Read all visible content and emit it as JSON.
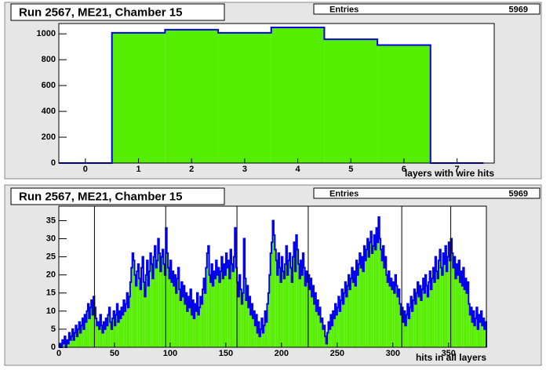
{
  "chart_data": [
    {
      "type": "histogram",
      "title": "Run 2567, ME21, Chamber 15",
      "stats": {
        "label": "Entries",
        "value": 5969
      },
      "xlabel": "layers with wire hits",
      "bins": [
        -0.5,
        0.5,
        1.5,
        2.5,
        3.5,
        4.5,
        5.5,
        6.5,
        7.5
      ],
      "values": [
        0,
        1008,
        1032,
        1008,
        1050,
        958,
        913,
        0
      ],
      "xlim": [
        -0.5,
        7.7
      ],
      "xticks": [
        0,
        1,
        2,
        3,
        4,
        5,
        6,
        7
      ],
      "ylim": [
        0,
        1080
      ],
      "yticks": [
        0,
        200,
        400,
        600,
        800,
        1000
      ],
      "color": "#55ee00",
      "line_color": "#0000ee"
    },
    {
      "type": "histogram",
      "title": "Run 2567, ME21, Chamber 15",
      "stats": {
        "label": "Entries",
        "value": 5969
      },
      "xlabel": "hits in all layers",
      "bins": [
        0,
        1,
        2,
        3,
        4,
        5,
        6,
        7,
        8,
        9,
        10,
        11,
        12,
        13,
        14,
        15,
        16,
        17,
        18,
        19,
        20,
        21,
        22,
        23,
        24,
        25,
        26,
        27,
        28,
        29,
        30,
        31,
        32,
        33,
        34,
        35,
        36,
        37,
        38,
        39,
        40,
        41,
        42,
        43,
        44,
        45,
        46,
        47,
        48,
        49,
        50,
        51,
        52,
        53,
        54,
        55,
        56,
        57,
        58,
        59,
        60,
        61,
        62,
        63,
        64,
        65,
        66,
        67,
        68,
        69,
        70,
        71,
        72,
        73,
        74,
        75,
        76,
        77,
        78,
        79,
        80,
        81,
        82,
        83,
        84,
        85,
        86,
        87,
        88,
        89,
        90,
        91,
        92,
        93,
        94,
        95,
        96,
        97,
        98,
        99,
        100,
        101,
        102,
        103,
        104,
        105,
        106,
        107,
        108,
        109,
        110,
        111,
        112,
        113,
        114,
        115,
        116,
        117,
        118,
        119,
        120,
        121,
        122,
        123,
        124,
        125,
        126,
        127,
        128,
        129,
        130,
        131,
        132,
        133,
        134,
        135,
        136,
        137,
        138,
        139,
        140,
        141,
        142,
        143,
        144,
        145,
        146,
        147,
        148,
        149,
        150,
        151,
        152,
        153,
        154,
        155,
        156,
        157,
        158,
        159,
        160,
        161,
        162,
        163,
        164,
        165,
        166,
        167,
        168,
        169,
        170,
        171,
        172,
        173,
        174,
        175,
        176,
        177,
        178,
        179,
        180,
        181,
        182,
        183,
        184,
        185,
        186,
        187,
        188,
        189,
        190,
        191,
        192,
        193,
        194,
        195,
        196,
        197,
        198,
        199,
        200,
        201,
        202,
        203,
        204,
        205,
        206,
        207,
        208,
        209,
        210,
        211,
        212,
        213,
        214,
        215,
        216,
        217,
        218,
        219,
        220,
        221,
        222,
        223,
        224,
        225,
        226,
        227,
        228,
        229,
        230,
        231,
        232,
        233,
        234,
        235,
        236,
        237,
        238,
        239,
        240,
        241,
        242,
        243,
        244,
        245,
        246,
        247,
        248,
        249,
        250,
        251,
        252,
        253,
        254,
        255,
        256,
        257,
        258,
        259,
        260,
        261,
        262,
        263,
        264,
        265,
        266,
        267,
        268,
        269,
        270,
        271,
        272,
        273,
        274,
        275,
        276,
        277,
        278,
        279,
        280,
        281,
        282,
        283,
        284,
        285,
        286,
        287,
        288,
        289,
        290,
        291,
        292,
        293,
        294,
        295,
        296,
        297,
        298,
        299,
        300,
        301,
        302,
        303,
        304,
        305,
        306,
        307,
        308,
        309,
        310,
        311,
        312,
        313,
        314,
        315,
        316,
        317,
        318,
        319,
        320,
        321,
        322,
        323,
        324,
        325,
        326,
        327,
        328,
        329,
        330,
        331,
        332,
        333,
        334,
        335,
        336,
        337,
        338,
        339,
        340,
        341,
        342,
        343,
        344,
        345,
        346,
        347,
        348,
        349,
        350,
        351,
        352,
        353,
        354,
        355,
        356,
        357,
        358,
        359,
        360,
        361,
        362,
        363,
        364,
        365,
        366,
        367,
        368,
        369,
        370,
        371,
        372,
        373,
        374,
        375,
        376,
        377,
        378,
        379,
        380,
        381,
        382,
        383,
        384
      ],
      "values": [
        0,
        1,
        0,
        2,
        1,
        3,
        0,
        2,
        1,
        4,
        2,
        3,
        5,
        2,
        4,
        6,
        3,
        5,
        7,
        4,
        6,
        8,
        5,
        9,
        7,
        10,
        12,
        8,
        11,
        13,
        9,
        14,
        11,
        8,
        6,
        7,
        5,
        9,
        6,
        4,
        7,
        5,
        8,
        6,
        9,
        11,
        7,
        5,
        8,
        10,
        6,
        9,
        12,
        7,
        10,
        8,
        11,
        9,
        13,
        10,
        12,
        15,
        11,
        14,
        18,
        22,
        26,
        24,
        20,
        17,
        21,
        23,
        19,
        16,
        22,
        25,
        18,
        14,
        20,
        24,
        17,
        21,
        26,
        23,
        19,
        25,
        28,
        22,
        24,
        30,
        26,
        21,
        25,
        27,
        23,
        20,
        33,
        26,
        22,
        19,
        24,
        18,
        21,
        17,
        20,
        15,
        19,
        22,
        16,
        13,
        18,
        14,
        17,
        12,
        15,
        10,
        14,
        11,
        16,
        9,
        13,
        8,
        12,
        10,
        15,
        9,
        11,
        14,
        12,
        16,
        19,
        15,
        22,
        26,
        28,
        20,
        18,
        23,
        17,
        21,
        19,
        24,
        20,
        22,
        18,
        21,
        25,
        19,
        23,
        20,
        26,
        22,
        24,
        19,
        27,
        23,
        21,
        25,
        33,
        22,
        18,
        14,
        20,
        16,
        12,
        15,
        30,
        19,
        13,
        17,
        11,
        14,
        9,
        12,
        8,
        10,
        6,
        9,
        4,
        7,
        3,
        5,
        8,
        4,
        6,
        10,
        7,
        12,
        15,
        20,
        26,
        29,
        35,
        31,
        27,
        24,
        20,
        26,
        22,
        18,
        25,
        21,
        19,
        23,
        28,
        20,
        24,
        26,
        22,
        18,
        25,
        29,
        21,
        31,
        27,
        23,
        19,
        24,
        20,
        26,
        22,
        17,
        21,
        18,
        20,
        16,
        19,
        14,
        17,
        12,
        15,
        10,
        13,
        9,
        11,
        7,
        8,
        5,
        6,
        3,
        1,
        4,
        7,
        5,
        9,
        6,
        10,
        8,
        12,
        9,
        11,
        14,
        10,
        13,
        16,
        12,
        15,
        18,
        14,
        17,
        20,
        16,
        19,
        22,
        18,
        21,
        17,
        24,
        20,
        23,
        26,
        22,
        25,
        21,
        28,
        24,
        27,
        30,
        25,
        29,
        32,
        26,
        28,
        31,
        27,
        33,
        29,
        36,
        30,
        27,
        24,
        28,
        22,
        25,
        20,
        18,
        21,
        17,
        19,
        16,
        18,
        15,
        20,
        17,
        14,
        16,
        12,
        9,
        11,
        7,
        10,
        6,
        9,
        12,
        8,
        11,
        14,
        10,
        13,
        16,
        12,
        15,
        18,
        14,
        17,
        13,
        16,
        19,
        15,
        20,
        17,
        14,
        18,
        21,
        16,
        19,
        22,
        18,
        25,
        21,
        19,
        24,
        27,
        22,
        20,
        26,
        23,
        28,
        21,
        25,
        29,
        24,
        30,
        26,
        22,
        25,
        19,
        23,
        20,
        24,
        18,
        21,
        17,
        22,
        16,
        19,
        15,
        18,
        12,
        9,
        11,
        7,
        10,
        6,
        8,
        11,
        5,
        9,
        7,
        10,
        6,
        8,
        5,
        7
      ],
      "vlines": [
        32,
        96,
        160,
        224,
        308,
        352
      ],
      "xlim": [
        0,
        384
      ],
      "xticks": [
        0,
        50,
        100,
        150,
        200,
        250,
        300,
        350
      ],
      "ylim": [
        0,
        39
      ],
      "yticks": [
        0,
        5,
        10,
        15,
        20,
        25,
        30,
        35
      ],
      "color": "#55ee00",
      "line_color": "#0000ee"
    }
  ]
}
